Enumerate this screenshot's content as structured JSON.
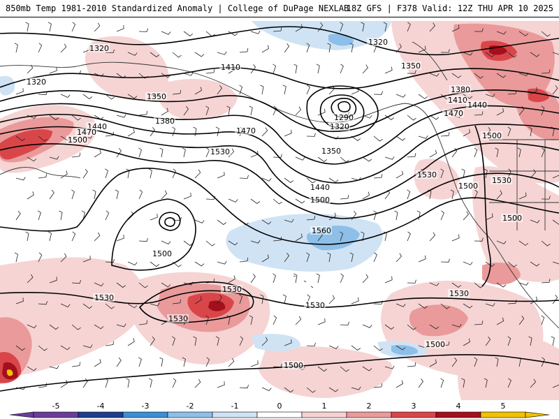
{
  "header": {
    "title": "850mb Temp 1981-2010 Standardized Anomaly | College of DuPage NEXLAB",
    "run_info": "18Z GFS | F378 Valid: 12Z THU APR 10 2025"
  },
  "contour_labels": [
    {
      "text": "1320"
    },
    {
      "text": "1320"
    },
    {
      "text": "1410"
    },
    {
      "text": "1350"
    },
    {
      "text": "1380"
    },
    {
      "text": "1440"
    },
    {
      "text": "1470"
    },
    {
      "text": "1500"
    },
    {
      "text": "1470"
    },
    {
      "text": "1530"
    },
    {
      "text": "1290"
    },
    {
      "text": "1320"
    },
    {
      "text": "1350"
    },
    {
      "text": "1440"
    },
    {
      "text": "1500"
    },
    {
      "text": "1320"
    },
    {
      "text": "1350"
    },
    {
      "text": "1380"
    },
    {
      "text": "1410"
    },
    {
      "text": "1440"
    },
    {
      "text": "1470"
    },
    {
      "text": "1500"
    },
    {
      "text": "1530"
    },
    {
      "text": "1500"
    },
    {
      "text": "1530"
    },
    {
      "text": "1500"
    },
    {
      "text": "1560"
    },
    {
      "text": "1500"
    },
    {
      "text": "1530"
    },
    {
      "text": "1530"
    },
    {
      "text": "1530"
    },
    {
      "text": "1530"
    },
    {
      "text": "1530"
    },
    {
      "text": "1500"
    },
    {
      "text": "1500"
    }
  ],
  "legend": {
    "ticks": [
      "-5",
      "-4",
      "-3",
      "-2",
      "-1",
      "0",
      "1",
      "2",
      "3",
      "4",
      "5"
    ],
    "colors": {
      "m5": "#6a3d9a",
      "m4": "#1f3d8a",
      "m3": "#3a8fd6",
      "m2": "#8dbfe8",
      "m1": "#cfe3f4",
      "zero": "#ffffff",
      "p1": "#f6d2d2",
      "p2": "#ea9a9a",
      "p3": "#d9464a",
      "p4": "#a3101c",
      "p5": "#f2c200"
    }
  }
}
